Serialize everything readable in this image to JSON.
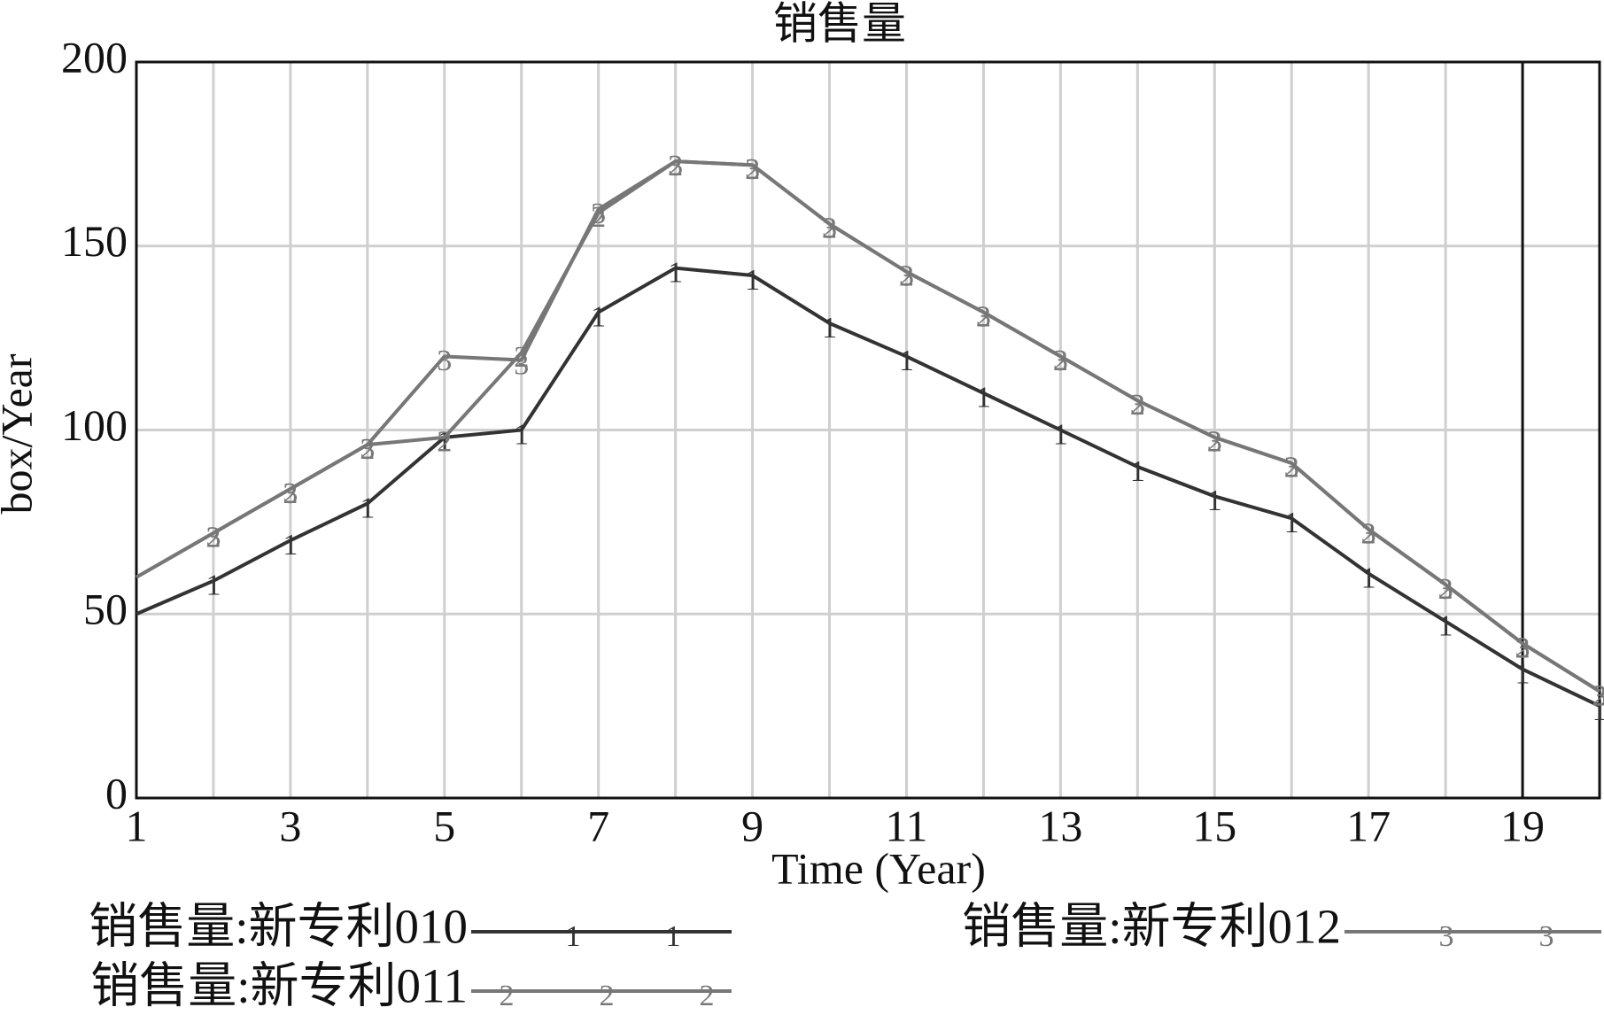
{
  "chart_data": {
    "type": "line",
    "title": "销售量",
    "x_label": "Time (Year)",
    "y_label": "box/Year",
    "x": [
      1,
      2,
      3,
      4,
      5,
      6,
      7,
      8,
      9,
      10,
      11,
      12,
      13,
      14,
      15,
      16,
      17,
      18,
      19,
      20
    ],
    "series": [
      {
        "name": "销售量:新专利010",
        "marker": "1",
        "color": "#333333",
        "values": [
          50,
          59,
          70,
          80,
          98,
          100,
          132,
          144,
          142,
          129,
          120,
          110,
          100,
          90,
          82,
          76,
          61,
          48,
          35,
          25
        ]
      },
      {
        "name": "销售量:新专利011",
        "marker": "2",
        "color": "#777777",
        "values": [
          60,
          72,
          84,
          96,
          98,
          121,
          159,
          173,
          172,
          156,
          143,
          132,
          120,
          108,
          98,
          91,
          73,
          58,
          42,
          29
        ]
      },
      {
        "name": "销售量:新专利012",
        "marker": "3",
        "color": "#777777",
        "values": [
          60,
          72,
          84,
          96,
          120,
          119,
          160,
          173,
          172,
          156,
          143,
          132,
          120,
          108,
          98,
          91,
          73,
          58,
          42,
          29
        ]
      }
    ],
    "xlim": [
      1,
      20
    ],
    "xticks": [
      1,
      3,
      5,
      7,
      9,
      11,
      13,
      15,
      17,
      19
    ],
    "minor_xticks": [
      2,
      4,
      6,
      8,
      10,
      12,
      14,
      16,
      18,
      20
    ],
    "ylim": [
      0,
      200
    ],
    "yticks": [
      0,
      50,
      100,
      150,
      200
    ],
    "grid": true,
    "cursor_x": 19
  }
}
